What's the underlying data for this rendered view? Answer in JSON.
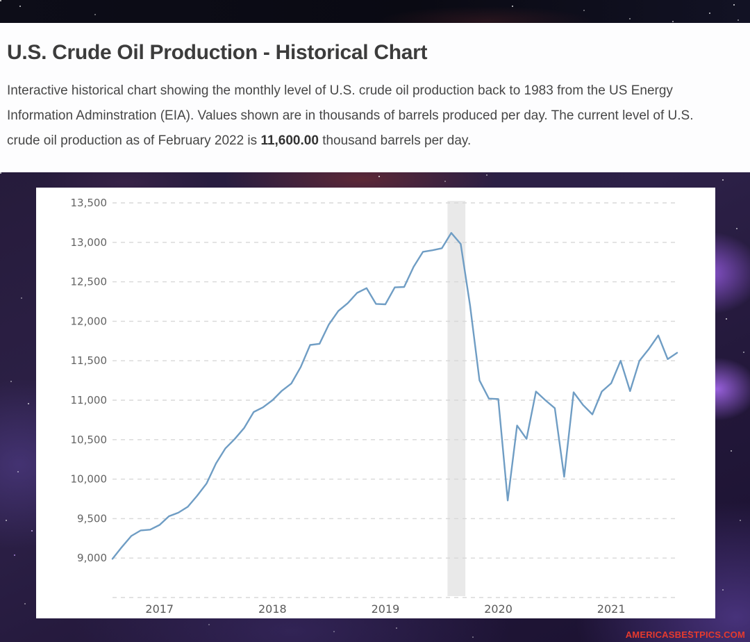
{
  "header": {
    "title": "U.S. Crude Oil Production - Historical Chart"
  },
  "description": {
    "line1": "Interactive historical chart showing the monthly level of U.S. crude oil production back to 1983 from the US Energy",
    "line2": "Information Adminstration (EIA). Values shown are in thousands of barrels produced per day. The current level of U.S.",
    "line3_prefix": "crude oil production as of February 2022 is ",
    "line3_value": "11,600.00",
    "line3_suffix": " thousand barrels per day."
  },
  "watermark": {
    "text": "AMERICASBESTPICS.COM",
    "color": "#e63a2e"
  },
  "chart_data": {
    "type": "line",
    "series_name": "U.S. crude oil production, thousand barrels per day",
    "x_start_month": "2017-02",
    "x_end_month": "2022-02",
    "x_interval": "monthly",
    "values": [
      8990,
      9140,
      9280,
      9350,
      9360,
      9420,
      9530,
      9575,
      9650,
      9790,
      9945,
      10200,
      10390,
      10510,
      10650,
      10850,
      10910,
      11000,
      11120,
      11210,
      11420,
      11700,
      11715,
      11960,
      12130,
      12230,
      12360,
      12420,
      12220,
      12215,
      12430,
      12435,
      12690,
      12880,
      12900,
      12925,
      13120,
      12980,
      12200,
      11250,
      11020,
      11015,
      9730,
      10680,
      10510,
      11110,
      11000,
      10900,
      10030,
      11100,
      10940,
      10820,
      11110,
      11215,
      11500,
      11115,
      11500,
      11650,
      11820,
      11520,
      11600
    ],
    "current_value": 11600.0,
    "x_ticks": [
      {
        "label": "2017",
        "index": 5
      },
      {
        "label": "2018",
        "index": 17
      },
      {
        "label": "2019",
        "index": 29
      },
      {
        "label": "2020",
        "index": 41
      },
      {
        "label": "2021",
        "index": 53
      }
    ],
    "y_ticks": [
      {
        "value": 13500,
        "label": "13,500"
      },
      {
        "value": 13000,
        "label": "13,000"
      },
      {
        "value": 12500,
        "label": "12,500"
      },
      {
        "value": 12000,
        "label": "12,000"
      },
      {
        "value": 11500,
        "label": "11,500"
      },
      {
        "value": 11000,
        "label": "11,000"
      },
      {
        "value": 10500,
        "label": "10,500"
      },
      {
        "value": 10000,
        "label": "10,000"
      },
      {
        "value": 9500,
        "label": "9,500"
      },
      {
        "value": 9000,
        "label": "9,000"
      },
      {
        "value": 8500,
        "label": ""
      }
    ],
    "ylim": [
      8500,
      13500
    ],
    "grid": "horizontal dashed",
    "legend": "none",
    "line_color": "#6f9dc4",
    "shaded_band": {
      "start_index": 35.6,
      "end_index": 37.5,
      "color": "#e9e9e9"
    }
  }
}
